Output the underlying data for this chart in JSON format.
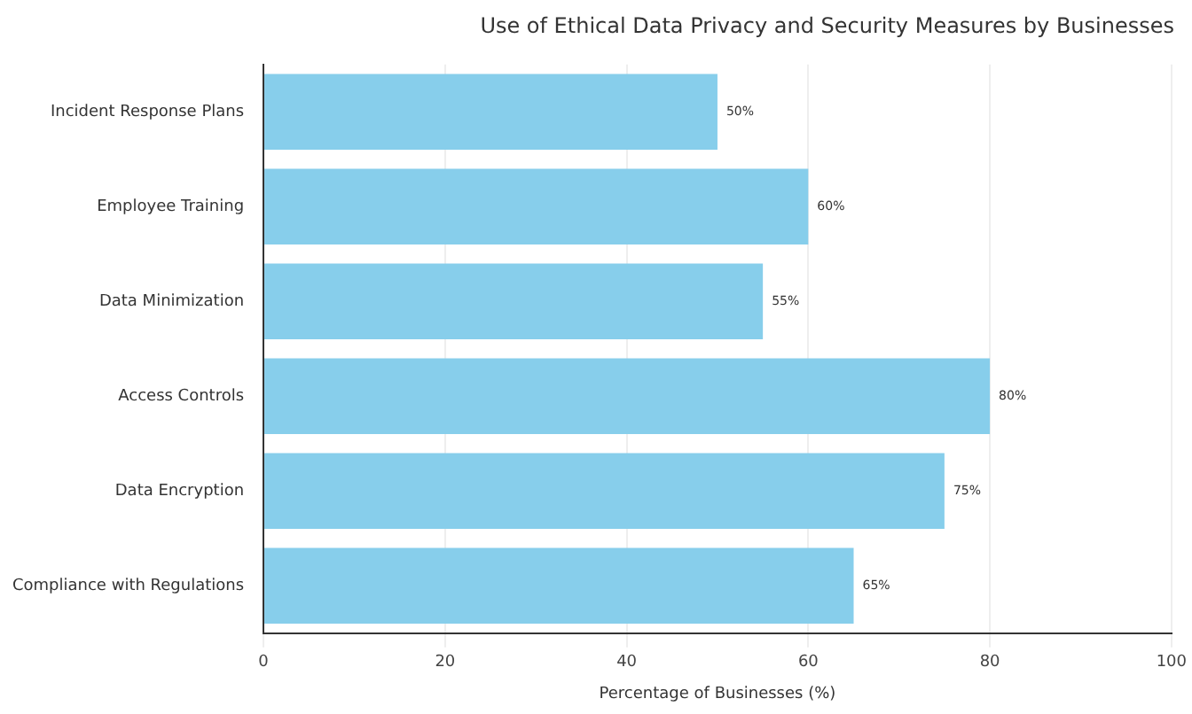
{
  "chart_data": {
    "type": "bar",
    "orientation": "horizontal",
    "title": "Use of Ethical Data Privacy and Security Measures by Businesses",
    "xlabel": "Percentage of Businesses (%)",
    "categories": [
      "Incident Response Plans",
      "Employee Training",
      "Data Minimization",
      "Access Controls",
      "Data Encryption",
      "Compliance with Regulations"
    ],
    "values": [
      50,
      60,
      55,
      80,
      75,
      65
    ],
    "value_labels": [
      "50%",
      "60%",
      "55%",
      "80%",
      "75%",
      "65%"
    ],
    "color": "#87ceeb",
    "xlim": [
      0,
      100
    ],
    "xticks": [
      0,
      20,
      40,
      60,
      80,
      100
    ],
    "grid": "x"
  }
}
